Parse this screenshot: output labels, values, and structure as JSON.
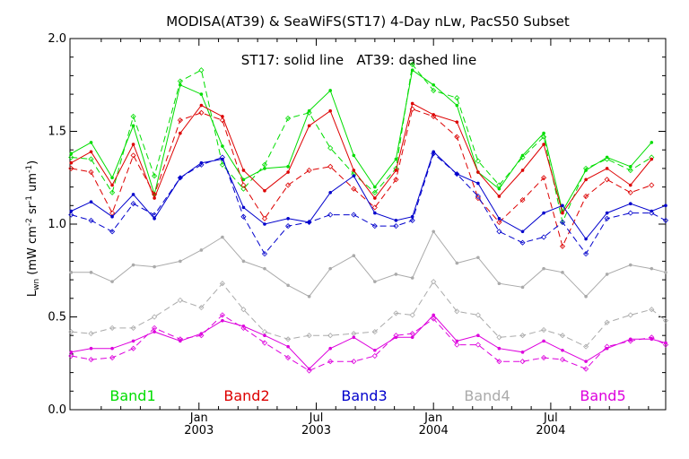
{
  "chart_data": {
    "type": "line",
    "title": "MODISA(AT39) & SeaWiFS(ST17) 4-Day nLw, PacS50 Subset",
    "annotation": "ST17: solid line   AT39: dashed line",
    "ylabel": "L_wn (mW cm^-2 sr^-1 um^-1)",
    "ylabel_main": "L",
    "ylabel_sub": "wn",
    "ylabel_units": " (mW cm",
    "ylabel_e1": "-2",
    "ylabel_sr": " sr",
    "ylabel_e2": "-1",
    "ylabel_um": " um",
    "ylabel_e3": "-1",
    "ylabel_close": ")",
    "ylim": [
      0.0,
      2.0
    ],
    "y_ticks": [
      {
        "value": 0.0,
        "label": "0.0"
      },
      {
        "value": 0.5,
        "label": "0.5"
      },
      {
        "value": 1.0,
        "label": "1.0"
      },
      {
        "value": 1.5,
        "label": "1.5"
      },
      {
        "value": 2.0,
        "label": "2.0"
      }
    ],
    "xlim": [
      2002.45,
      2004.99
    ],
    "x_ticks": [
      {
        "value": 2003.0,
        "month": "Jan",
        "year": "2003"
      },
      {
        "value": 2003.5,
        "month": "Jul",
        "year": "2003"
      },
      {
        "value": 2004.0,
        "month": "Jan",
        "year": "2004"
      },
      {
        "value": 2004.5,
        "month": "Jul",
        "year": "2004"
      }
    ],
    "x": [
      2002.455,
      2002.54,
      2002.63,
      2002.72,
      2002.81,
      2002.92,
      2003.01,
      2003.1,
      2003.19,
      2003.28,
      2003.38,
      2003.47,
      2003.56,
      2003.66,
      2003.75,
      2003.84,
      2003.91,
      2004.0,
      2004.1,
      2004.19,
      2004.28,
      2004.38,
      2004.47,
      2004.55,
      2004.65,
      2004.74,
      2004.84,
      2004.93,
      2004.99
    ],
    "grid": false,
    "legend": "bottom",
    "series": [
      {
        "name": "Band1",
        "color": "#00dd00",
        "style": "solid",
        "values": [
          1.38,
          1.44,
          1.25,
          1.53,
          1.16,
          1.75,
          1.7,
          1.42,
          1.24,
          1.3,
          1.31,
          1.61,
          1.72,
          1.37,
          1.2,
          1.35,
          1.83,
          1.75,
          1.64,
          1.28,
          1.19,
          1.37,
          1.49,
          1.07,
          1.29,
          1.36,
          1.31,
          1.44,
          null
        ]
      },
      {
        "name": "Band1 AT39",
        "color": "#00dd00",
        "style": "dashed",
        "values": [
          1.36,
          1.35,
          1.17,
          1.58,
          1.26,
          1.77,
          1.83,
          1.32,
          1.19,
          1.32,
          1.57,
          1.6,
          1.41,
          1.27,
          1.17,
          1.3,
          1.86,
          1.72,
          1.68,
          1.34,
          1.21,
          1.36,
          1.47,
          1.01,
          1.3,
          1.35,
          1.29,
          1.36,
          null
        ]
      },
      {
        "name": "Band2",
        "color": "#dd0000",
        "style": "solid",
        "values": [
          1.33,
          1.39,
          1.21,
          1.43,
          1.14,
          1.49,
          1.64,
          1.58,
          1.29,
          1.18,
          1.28,
          1.53,
          1.61,
          1.29,
          1.14,
          1.29,
          1.65,
          1.59,
          1.55,
          1.28,
          1.15,
          1.29,
          1.43,
          1.06,
          1.24,
          1.3,
          1.21,
          1.35,
          null
        ]
      },
      {
        "name": "Band2 AT39",
        "color": "#dd0000",
        "style": "dashed",
        "values": [
          1.3,
          1.28,
          1.06,
          1.37,
          1.16,
          1.56,
          1.6,
          1.56,
          1.21,
          1.03,
          1.21,
          1.29,
          1.31,
          1.19,
          1.09,
          1.24,
          1.62,
          1.58,
          1.47,
          1.14,
          1.01,
          1.13,
          1.25,
          0.88,
          1.15,
          1.24,
          1.17,
          1.21,
          null
        ]
      },
      {
        "name": "Band3",
        "color": "#0000cc",
        "style": "solid",
        "values": [
          1.07,
          1.12,
          1.04,
          1.16,
          1.03,
          1.25,
          1.33,
          1.35,
          1.09,
          1.0,
          1.03,
          1.01,
          1.17,
          1.26,
          1.06,
          1.02,
          1.04,
          1.39,
          1.27,
          1.22,
          1.03,
          0.96,
          1.06,
          1.1,
          0.92,
          1.06,
          1.11,
          1.07,
          1.1
        ]
      },
      {
        "name": "Band3 AT39",
        "color": "#0000cc",
        "style": "dashed",
        "values": [
          1.05,
          1.02,
          0.96,
          1.11,
          1.05,
          1.25,
          1.32,
          1.36,
          1.04,
          0.84,
          0.99,
          1.01,
          1.05,
          1.05,
          0.99,
          0.99,
          1.02,
          1.38,
          1.27,
          1.15,
          0.96,
          0.9,
          0.93,
          1.01,
          0.84,
          1.03,
          1.06,
          1.06,
          1.02
        ]
      },
      {
        "name": "Band4",
        "color": "#aaaaaa",
        "style": "solid",
        "values": [
          0.74,
          0.74,
          0.69,
          0.78,
          0.77,
          0.8,
          0.86,
          0.93,
          0.8,
          0.76,
          0.67,
          0.61,
          0.76,
          0.83,
          0.69,
          0.73,
          0.71,
          0.96,
          0.79,
          0.82,
          0.68,
          0.66,
          0.76,
          0.74,
          0.61,
          0.73,
          0.78,
          0.76,
          0.74
        ]
      },
      {
        "name": "Band4 AT39",
        "color": "#aaaaaa",
        "style": "dashed",
        "values": [
          0.42,
          0.41,
          0.44,
          0.44,
          0.5,
          0.59,
          0.55,
          0.68,
          0.54,
          0.42,
          0.38,
          0.4,
          0.4,
          0.41,
          0.42,
          0.52,
          0.51,
          0.69,
          0.53,
          0.51,
          0.39,
          0.4,
          0.43,
          0.4,
          0.34,
          0.47,
          0.51,
          0.54,
          0.48
        ]
      },
      {
        "name": "Band5",
        "color": "#dd00dd",
        "style": "solid",
        "values": [
          0.31,
          0.33,
          0.33,
          0.37,
          0.42,
          0.37,
          0.41,
          0.48,
          0.45,
          0.4,
          0.34,
          0.22,
          0.33,
          0.39,
          0.32,
          0.39,
          0.39,
          0.51,
          0.37,
          0.4,
          0.33,
          0.31,
          0.37,
          0.32,
          0.26,
          0.33,
          0.38,
          0.38,
          0.36
        ]
      },
      {
        "name": "Band5 AT39",
        "color": "#dd00dd",
        "style": "dashed",
        "values": [
          0.29,
          0.27,
          0.28,
          0.33,
          0.44,
          0.38,
          0.4,
          0.51,
          0.44,
          0.36,
          0.28,
          0.21,
          0.26,
          0.26,
          0.29,
          0.4,
          0.41,
          0.49,
          0.35,
          0.35,
          0.26,
          0.26,
          0.28,
          0.27,
          0.22,
          0.34,
          0.37,
          0.39,
          0.35
        ]
      }
    ],
    "band_labels": [
      {
        "text": "Band1",
        "color": "#00dd00"
      },
      {
        "text": "Band2",
        "color": "#dd0000"
      },
      {
        "text": "Band3",
        "color": "#0000cc"
      },
      {
        "text": "Band4",
        "color": "#aaaaaa"
      },
      {
        "text": "Band5",
        "color": "#dd00dd"
      }
    ]
  }
}
